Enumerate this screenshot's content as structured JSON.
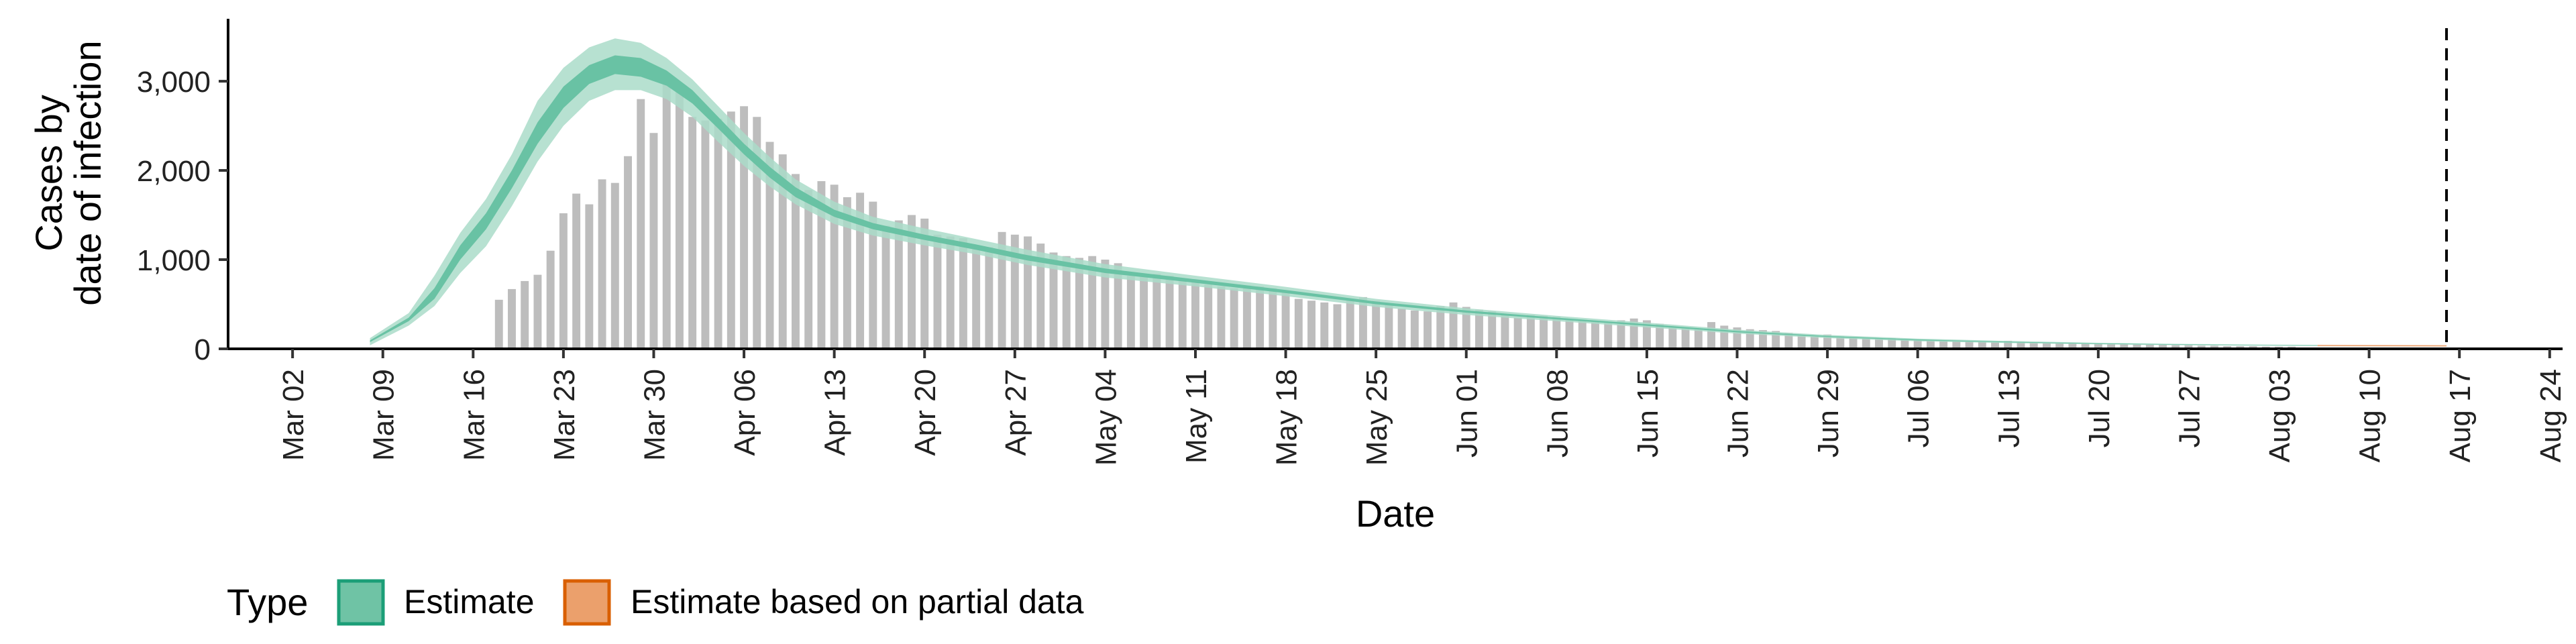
{
  "chart_data": {
    "type": "bar",
    "title": "",
    "xlabel": "Date",
    "ylabel_lines": [
      "Cases by",
      "date of infection"
    ],
    "x_range": [
      "2020-02-26",
      "2020-08-25"
    ],
    "ylim": [
      0,
      3700
    ],
    "y_ticks": [
      0,
      1000,
      2000,
      3000
    ],
    "y_tick_labels": [
      "0",
      "1,000",
      "2,000",
      "3,000"
    ],
    "x_ticks": [
      "2020-03-02",
      "2020-03-09",
      "2020-03-16",
      "2020-03-23",
      "2020-03-30",
      "2020-04-06",
      "2020-04-13",
      "2020-04-20",
      "2020-04-27",
      "2020-05-04",
      "2020-05-11",
      "2020-05-18",
      "2020-05-25",
      "2020-06-01",
      "2020-06-08",
      "2020-06-15",
      "2020-06-22",
      "2020-06-29",
      "2020-07-06",
      "2020-07-13",
      "2020-07-20",
      "2020-07-27",
      "2020-08-03",
      "2020-08-10",
      "2020-08-17",
      "2020-08-24"
    ],
    "x_tick_labels": [
      "Mar 02",
      "Mar 09",
      "Mar 16",
      "Mar 23",
      "Mar 30",
      "Apr 06",
      "Apr 13",
      "Apr 20",
      "Apr 27",
      "May 04",
      "May 11",
      "May 18",
      "May 25",
      "Jun 01",
      "Jun 08",
      "Jun 15",
      "Jun 22",
      "Jun 29",
      "Jul 06",
      "Jul 13",
      "Jul 20",
      "Jul 27",
      "Aug 03",
      "Aug 10",
      "Aug 17",
      "Aug 24"
    ],
    "grid": false,
    "vline_date": "2020-08-16",
    "bars": {
      "start_date": "2020-03-18",
      "values": [
        550,
        670,
        760,
        830,
        1100,
        1520,
        1740,
        1620,
        1900,
        1860,
        2160,
        2800,
        2420,
        3080,
        2940,
        2600,
        2560,
        2580,
        2660,
        2720,
        2600,
        2320,
        2180,
        1960,
        1780,
        1880,
        1840,
        1700,
        1750,
        1650,
        1380,
        1440,
        1500,
        1460,
        1280,
        1260,
        1240,
        1160,
        1140,
        1310,
        1280,
        1260,
        1180,
        1080,
        1040,
        1020,
        1040,
        1000,
        960,
        820,
        810,
        840,
        820,
        780,
        760,
        720,
        700,
        680,
        710,
        700,
        680,
        640,
        560,
        540,
        520,
        500,
        560,
        580,
        540,
        500,
        450,
        430,
        420,
        480,
        520,
        470,
        440,
        420,
        380,
        350,
        380,
        370,
        360,
        330,
        320,
        310,
        300,
        320,
        340,
        320,
        280,
        250,
        240,
        230,
        300,
        260,
        240,
        220,
        210,
        200,
        180,
        160,
        150,
        160,
        140,
        130,
        120,
        110,
        120,
        110,
        100,
        100,
        95,
        90,
        85,
        80,
        75,
        90,
        80,
        70,
        65,
        60,
        70,
        60,
        55,
        50,
        55,
        50,
        45,
        45,
        40,
        40,
        35,
        35,
        30,
        30,
        30,
        25,
        25,
        25
      ]
    },
    "estimate_bands": [
      {
        "date": "2020-03-08",
        "lo90": 40,
        "lo50": 75,
        "hi50": 95,
        "hi90": 120
      },
      {
        "date": "2020-03-11",
        "lo90": 260,
        "lo50": 310,
        "hi50": 350,
        "hi90": 400
      },
      {
        "date": "2020-03-13",
        "lo90": 480,
        "lo50": 560,
        "hi50": 680,
        "hi90": 820
      },
      {
        "date": "2020-03-15",
        "lo90": 850,
        "lo50": 1000,
        "hi50": 1160,
        "hi90": 1300
      },
      {
        "date": "2020-03-17",
        "lo90": 1150,
        "lo50": 1340,
        "hi50": 1520,
        "hi90": 1680
      },
      {
        "date": "2020-03-19",
        "lo90": 1600,
        "lo50": 1800,
        "hi50": 2000,
        "hi90": 2180
      },
      {
        "date": "2020-03-21",
        "lo90": 2100,
        "lo50": 2300,
        "hi50": 2540,
        "hi90": 2780
      },
      {
        "date": "2020-03-23",
        "lo90": 2500,
        "lo50": 2700,
        "hi50": 2940,
        "hi90": 3150
      },
      {
        "date": "2020-03-25",
        "lo90": 2780,
        "lo50": 2970,
        "hi50": 3180,
        "hi90": 3380
      },
      {
        "date": "2020-03-27",
        "lo90": 2900,
        "lo50": 3080,
        "hi50": 3290,
        "hi90": 3480
      },
      {
        "date": "2020-03-29",
        "lo90": 2900,
        "lo50": 3050,
        "hi50": 3260,
        "hi90": 3430
      },
      {
        "date": "2020-03-31",
        "lo90": 2800,
        "lo50": 2950,
        "hi50": 3120,
        "hi90": 3260
      },
      {
        "date": "2020-04-02",
        "lo90": 2600,
        "lo50": 2750,
        "hi50": 2900,
        "hi90": 3020
      },
      {
        "date": "2020-04-04",
        "lo90": 2320,
        "lo50": 2470,
        "hi50": 2600,
        "hi90": 2720
      },
      {
        "date": "2020-04-06",
        "lo90": 2050,
        "lo50": 2180,
        "hi50": 2300,
        "hi90": 2420
      },
      {
        "date": "2020-04-08",
        "lo90": 1820,
        "lo50": 1920,
        "hi50": 2040,
        "hi90": 2150
      },
      {
        "date": "2020-04-10",
        "lo90": 1620,
        "lo50": 1700,
        "hi50": 1810,
        "hi90": 1900
      },
      {
        "date": "2020-04-13",
        "lo90": 1400,
        "lo50": 1480,
        "hi50": 1560,
        "hi90": 1650
      },
      {
        "date": "2020-04-16",
        "lo90": 1270,
        "lo50": 1340,
        "hi50": 1410,
        "hi90": 1480
      },
      {
        "date": "2020-04-20",
        "lo90": 1160,
        "lo50": 1220,
        "hi50": 1280,
        "hi90": 1350
      },
      {
        "date": "2020-04-24",
        "lo90": 1060,
        "lo50": 1110,
        "hi50": 1170,
        "hi90": 1230
      },
      {
        "date": "2020-04-28",
        "lo90": 940,
        "lo50": 990,
        "hi50": 1050,
        "hi90": 1110
      },
      {
        "date": "2020-05-04",
        "lo90": 800,
        "lo50": 850,
        "hi50": 900,
        "hi90": 950
      },
      {
        "date": "2020-05-11",
        "lo90": 700,
        "lo50": 740,
        "hi50": 780,
        "hi90": 820
      },
      {
        "date": "2020-05-18",
        "lo90": 590,
        "lo50": 625,
        "hi50": 660,
        "hi90": 695
      },
      {
        "date": "2020-05-25",
        "lo90": 470,
        "lo50": 500,
        "hi50": 530,
        "hi90": 560
      },
      {
        "date": "2020-06-01",
        "lo90": 380,
        "lo50": 405,
        "hi50": 430,
        "hi90": 455
      },
      {
        "date": "2020-06-08",
        "lo90": 310,
        "lo50": 330,
        "hi50": 350,
        "hi90": 370
      },
      {
        "date": "2020-06-15",
        "lo90": 240,
        "lo50": 258,
        "hi50": 276,
        "hi90": 294
      },
      {
        "date": "2020-06-22",
        "lo90": 170,
        "lo50": 185,
        "hi50": 200,
        "hi90": 215
      },
      {
        "date": "2020-06-29",
        "lo90": 120,
        "lo50": 132,
        "hi50": 144,
        "hi90": 156
      },
      {
        "date": "2020-07-06",
        "lo90": 85,
        "lo50": 95,
        "hi50": 105,
        "hi90": 115
      },
      {
        "date": "2020-07-13",
        "lo90": 65,
        "lo50": 72,
        "hi50": 80,
        "hi90": 88
      },
      {
        "date": "2020-07-20",
        "lo90": 50,
        "lo50": 56,
        "hi50": 62,
        "hi90": 68
      },
      {
        "date": "2020-07-27",
        "lo90": 40,
        "lo50": 45,
        "hi50": 50,
        "hi90": 55
      },
      {
        "date": "2020-08-03",
        "lo90": 34,
        "lo50": 38,
        "hi50": 42,
        "hi90": 46
      },
      {
        "date": "2020-08-06",
        "lo90": 32,
        "lo50": 36,
        "hi50": 40,
        "hi90": 44
      }
    ],
    "partial_bands": [
      {
        "date": "2020-08-06",
        "lo90": 28,
        "lo50": 33,
        "hi50": 40,
        "hi90": 46
      },
      {
        "date": "2020-08-11",
        "lo90": 26,
        "lo50": 31,
        "hi50": 38,
        "hi90": 44
      },
      {
        "date": "2020-08-16",
        "lo90": 24,
        "lo50": 29,
        "hi50": 36,
        "hi90": 42
      }
    ],
    "colors": {
      "bars": "#bdbdbd",
      "estimate_outer": "#aadcc9",
      "estimate_inner": "#69c2a4",
      "estimate_legend_fill": "#6fc3a5",
      "estimate_legend_border": "#1b9e77",
      "partial_outer": "#f5c4a3",
      "partial_inner": "#eaa06d",
      "partial_legend_fill": "#eba06c",
      "partial_legend_border": "#d95f02"
    },
    "legend": {
      "position": "bottom-left",
      "title": "Type",
      "items": [
        "Estimate",
        "Estimate based on partial data"
      ]
    }
  }
}
